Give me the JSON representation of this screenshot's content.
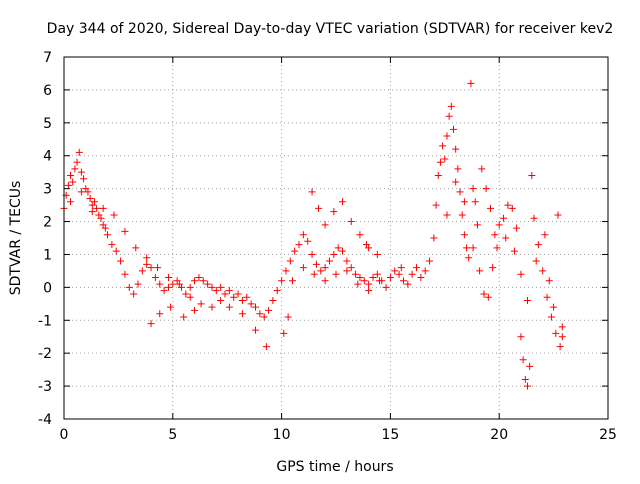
{
  "chart_data": {
    "type": "scatter",
    "title": "Day 344 of 2020, Sidereal Day-to-day VTEC variation (SDTVAR) for receiver kev2",
    "xlabel": "GPS time / hours",
    "ylabel": "SDTVAR / TECUs",
    "xlim": [
      0,
      25
    ],
    "ylim": [
      -4,
      7
    ],
    "xticks": [
      0,
      5,
      10,
      15,
      20,
      25
    ],
    "yticks": [
      -4,
      -3,
      -2,
      -1,
      0,
      1,
      2,
      3,
      4,
      5,
      6,
      7
    ],
    "grid": true,
    "marker": "+",
    "series_color": "#ff0000",
    "series": [
      {
        "name": "SDTVAR",
        "points": [
          [
            0.0,
            2.4
          ],
          [
            0.1,
            2.8
          ],
          [
            0.2,
            3.1
          ],
          [
            0.3,
            3.4
          ],
          [
            0.4,
            3.2
          ],
          [
            0.5,
            3.6
          ],
          [
            0.6,
            3.8
          ],
          [
            0.7,
            4.1
          ],
          [
            0.8,
            3.5
          ],
          [
            0.9,
            3.3
          ],
          [
            1.0,
            3.0
          ],
          [
            1.1,
            2.9
          ],
          [
            1.2,
            2.7
          ],
          [
            1.3,
            2.5
          ],
          [
            1.4,
            2.6
          ],
          [
            1.5,
            2.4
          ],
          [
            1.6,
            2.2
          ],
          [
            1.7,
            2.1
          ],
          [
            1.8,
            1.9
          ],
          [
            1.9,
            1.8
          ],
          [
            2.0,
            1.6
          ],
          [
            2.2,
            1.3
          ],
          [
            2.4,
            1.1
          ],
          [
            2.6,
            0.8
          ],
          [
            2.8,
            0.4
          ],
          [
            3.0,
            0.0
          ],
          [
            3.2,
            -0.2
          ],
          [
            3.4,
            0.1
          ],
          [
            3.6,
            0.5
          ],
          [
            3.8,
            0.7
          ],
          [
            4.0,
            0.6
          ],
          [
            4.2,
            0.3
          ],
          [
            4.4,
            0.1
          ],
          [
            4.6,
            -0.1
          ],
          [
            4.8,
            0.0
          ],
          [
            5.0,
            0.1
          ],
          [
            5.2,
            0.2
          ],
          [
            5.4,
            0.0
          ],
          [
            5.6,
            -0.2
          ],
          [
            5.8,
            0.0
          ],
          [
            6.0,
            0.2
          ],
          [
            6.2,
            0.3
          ],
          [
            6.4,
            0.2
          ],
          [
            6.6,
            0.1
          ],
          [
            6.8,
            0.0
          ],
          [
            7.0,
            -0.1
          ],
          [
            7.2,
            0.0
          ],
          [
            7.4,
            -0.2
          ],
          [
            7.6,
            -0.1
          ],
          [
            7.8,
            -0.3
          ],
          [
            8.0,
            -0.2
          ],
          [
            8.2,
            -0.4
          ],
          [
            8.4,
            -0.3
          ],
          [
            8.6,
            -0.5
          ],
          [
            8.8,
            -0.6
          ],
          [
            9.0,
            -0.8
          ],
          [
            9.2,
            -0.9
          ],
          [
            9.4,
            -0.7
          ],
          [
            9.6,
            -0.4
          ],
          [
            9.8,
            -0.1
          ],
          [
            10.0,
            0.2
          ],
          [
            10.2,
            0.5
          ],
          [
            10.4,
            0.8
          ],
          [
            10.6,
            1.1
          ],
          [
            10.8,
            1.3
          ],
          [
            11.0,
            1.6
          ],
          [
            11.2,
            1.4
          ],
          [
            11.4,
            1.0
          ],
          [
            11.6,
            0.7
          ],
          [
            11.8,
            0.5
          ],
          [
            12.0,
            0.6
          ],
          [
            12.2,
            0.8
          ],
          [
            12.4,
            1.0
          ],
          [
            12.6,
            1.2
          ],
          [
            12.8,
            1.1
          ],
          [
            13.0,
            0.8
          ],
          [
            13.2,
            0.6
          ],
          [
            13.4,
            0.4
          ],
          [
            13.6,
            0.3
          ],
          [
            13.8,
            0.2
          ],
          [
            14.0,
            0.1
          ],
          [
            14.2,
            0.3
          ],
          [
            14.4,
            0.4
          ],
          [
            14.6,
            0.2
          ],
          [
            14.8,
            0.0
          ],
          [
            15.0,
            0.3
          ],
          [
            15.2,
            0.5
          ],
          [
            15.4,
            0.4
          ],
          [
            15.6,
            0.2
          ],
          [
            15.8,
            0.1
          ],
          [
            16.0,
            0.4
          ],
          [
            16.2,
            0.6
          ],
          [
            16.4,
            0.3
          ],
          [
            16.6,
            0.5
          ],
          [
            16.8,
            0.8
          ],
          [
            17.0,
            1.5
          ],
          [
            17.1,
            2.5
          ],
          [
            17.2,
            3.4
          ],
          [
            17.3,
            3.8
          ],
          [
            17.4,
            4.3
          ],
          [
            17.5,
            3.9
          ],
          [
            17.6,
            4.6
          ],
          [
            17.7,
            5.2
          ],
          [
            17.8,
            5.5
          ],
          [
            17.9,
            4.8
          ],
          [
            18.0,
            4.2
          ],
          [
            18.1,
            3.6
          ],
          [
            18.2,
            2.9
          ],
          [
            18.3,
            2.2
          ],
          [
            18.4,
            1.6
          ],
          [
            18.5,
            1.2
          ],
          [
            18.6,
            0.9
          ],
          [
            18.7,
            6.2
          ],
          [
            18.8,
            3.0
          ],
          [
            18.9,
            2.6
          ],
          [
            19.0,
            1.9
          ],
          [
            19.2,
            3.6
          ],
          [
            19.4,
            3.0
          ],
          [
            19.6,
            2.4
          ],
          [
            19.8,
            1.6
          ],
          [
            20.0,
            1.9
          ],
          [
            20.2,
            2.1
          ],
          [
            20.4,
            2.5
          ],
          [
            20.6,
            2.4
          ],
          [
            20.8,
            1.8
          ],
          [
            21.0,
            -1.5
          ],
          [
            21.1,
            -2.2
          ],
          [
            21.2,
            -2.8
          ],
          [
            21.3,
            -3.0
          ],
          [
            21.4,
            -2.4
          ],
          [
            21.5,
            3.4
          ],
          [
            21.6,
            2.1
          ],
          [
            21.8,
            1.3
          ],
          [
            22.0,
            0.5
          ],
          [
            22.2,
            -0.3
          ],
          [
            22.4,
            -0.9
          ],
          [
            22.6,
            -1.4
          ],
          [
            22.7,
            2.2
          ],
          [
            22.8,
            -1.8
          ],
          [
            22.9,
            -1.2
          ],
          [
            0.3,
            2.6
          ],
          [
            0.8,
            2.9
          ],
          [
            1.3,
            2.3
          ],
          [
            1.8,
            2.4
          ],
          [
            2.3,
            2.2
          ],
          [
            2.8,
            1.7
          ],
          [
            3.3,
            1.2
          ],
          [
            3.8,
            0.9
          ],
          [
            4.3,
            0.6
          ],
          [
            4.8,
            0.3
          ],
          [
            5.3,
            0.1
          ],
          [
            5.8,
            -0.3
          ],
          [
            6.3,
            -0.5
          ],
          [
            6.8,
            -0.6
          ],
          [
            7.2,
            -0.4
          ],
          [
            4.0,
            -1.1
          ],
          [
            4.4,
            -0.8
          ],
          [
            4.9,
            -0.6
          ],
          [
            5.5,
            -0.9
          ],
          [
            6.0,
            -0.7
          ],
          [
            11.4,
            2.9
          ],
          [
            11.7,
            2.4
          ],
          [
            12.0,
            1.9
          ],
          [
            12.4,
            2.3
          ],
          [
            12.8,
            2.6
          ],
          [
            13.2,
            2.0
          ],
          [
            13.6,
            1.6
          ],
          [
            14.0,
            1.2
          ],
          [
            14.4,
            1.0
          ],
          [
            13.9,
            1.3
          ],
          [
            10.5,
            0.2
          ],
          [
            11.0,
            0.6
          ],
          [
            11.5,
            0.4
          ],
          [
            12.0,
            0.2
          ],
          [
            12.5,
            0.4
          ],
          [
            13.0,
            0.5
          ],
          [
            13.5,
            0.1
          ],
          [
            14.0,
            -0.1
          ],
          [
            14.5,
            0.2
          ],
          [
            15.5,
            0.6
          ],
          [
            10.1,
            -1.4
          ],
          [
            10.3,
            -0.9
          ],
          [
            9.3,
            -1.8
          ],
          [
            8.8,
            -1.3
          ],
          [
            8.2,
            -0.8
          ],
          [
            7.6,
            -0.6
          ],
          [
            17.6,
            2.2
          ],
          [
            18.0,
            3.2
          ],
          [
            18.4,
            2.6
          ],
          [
            18.8,
            1.2
          ],
          [
            19.1,
            0.5
          ],
          [
            19.3,
            -0.2
          ],
          [
            19.5,
            -0.3
          ],
          [
            19.7,
            0.6
          ],
          [
            19.9,
            1.2
          ],
          [
            20.3,
            1.5
          ],
          [
            20.7,
            1.1
          ],
          [
            21.0,
            0.4
          ],
          [
            21.3,
            -0.4
          ],
          [
            21.7,
            0.8
          ],
          [
            22.1,
            1.6
          ],
          [
            22.3,
            0.2
          ],
          [
            22.5,
            -0.6
          ],
          [
            22.9,
            -1.5
          ]
        ]
      }
    ]
  }
}
